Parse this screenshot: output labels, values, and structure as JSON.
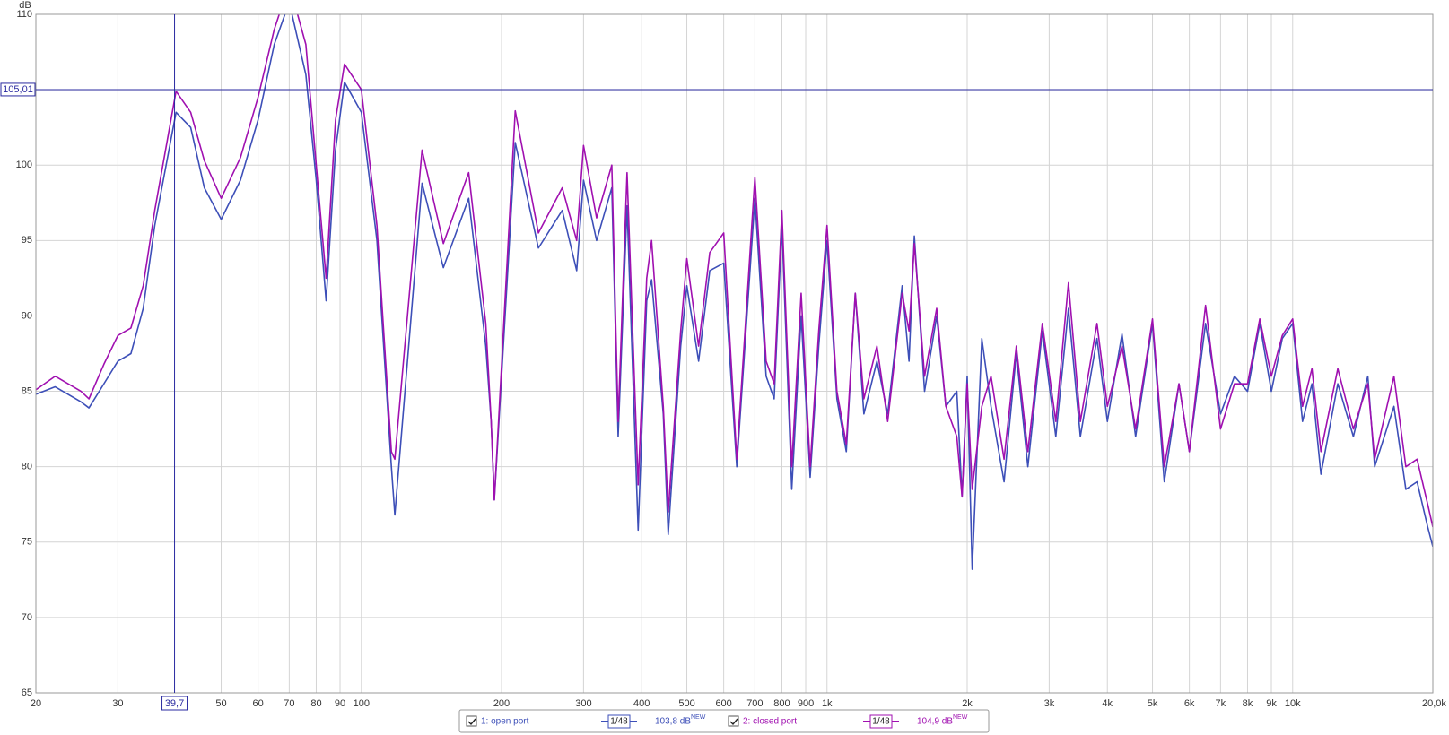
{
  "chart_data": {
    "type": "line",
    "y_axis_label": "dB",
    "log_x": true,
    "grid": true,
    "xlim": [
      20,
      20000
    ],
    "ylim": [
      65,
      110
    ],
    "yticks": [
      65,
      70,
      75,
      80,
      85,
      90,
      95,
      100,
      105,
      110
    ],
    "xticks": [
      20,
      30,
      50,
      60,
      70,
      80,
      90,
      100,
      200,
      300,
      400,
      500,
      600,
      700,
      800,
      900,
      {
        "value": 1000,
        "label": "1k"
      },
      {
        "value": 2000,
        "label": "2k"
      },
      {
        "value": 3000,
        "label": "3k"
      },
      {
        "value": 4000,
        "label": "4k"
      },
      {
        "value": 5000,
        "label": "5k"
      },
      {
        "value": 6000,
        "label": "6k"
      },
      {
        "value": 7000,
        "label": "7k"
      },
      {
        "value": 8000,
        "label": "8k"
      },
      {
        "value": 9000,
        "label": "9k"
      },
      {
        "value": 10000,
        "label": "10k"
      },
      {
        "value": 20000,
        "label": "20,0k Hz"
      }
    ],
    "cursor": {
      "x": 39.7,
      "x_label": "39,7",
      "y": 105.01,
      "y_label": "105,01",
      "color": "#2a2aa0"
    },
    "x": [
      20,
      22,
      25,
      26,
      28,
      30,
      32,
      34,
      36,
      40,
      43,
      46,
      50,
      55,
      60,
      65,
      70,
      76,
      80,
      84,
      88,
      92,
      100,
      108,
      116,
      118,
      135,
      150,
      170,
      185,
      190,
      193,
      214,
      240,
      270,
      290,
      300,
      320,
      345,
      356,
      372,
      393,
      410,
      420,
      445,
      456,
      485,
      500,
      530,
      560,
      600,
      640,
      700,
      740,
      770,
      800,
      840,
      880,
      920,
      960,
      1000,
      1050,
      1100,
      1150,
      1200,
      1280,
      1350,
      1450,
      1500,
      1540,
      1620,
      1720,
      1800,
      1900,
      1950,
      2000,
      2050,
      2150,
      2250,
      2400,
      2550,
      2700,
      2900,
      3100,
      3300,
      3500,
      3800,
      4000,
      4300,
      4600,
      5000,
      5300,
      5700,
      6000,
      6500,
      7000,
      7500,
      8000,
      8500,
      9000,
      9500,
      10000,
      10500,
      11000,
      11500,
      12500,
      13500,
      14500,
      15000,
      16500,
      17500,
      18500,
      19500,
      20000
    ],
    "series": [
      {
        "name": "1: open port",
        "color": "#3d4fb8",
        "smoothing": "1/48",
        "level": "103,8 dB",
        "level_tag": "NEW",
        "values": [
          84.8,
          85.3,
          84.3,
          83.9,
          85.5,
          87.0,
          87.5,
          90.5,
          96,
          103.5,
          102.5,
          98.5,
          96.4,
          99,
          103,
          108,
          110.8,
          106,
          99,
          91,
          101,
          105.5,
          103.5,
          95,
          80,
          76.8,
          98.8,
          93.2,
          97.8,
          88,
          83,
          77.8,
          101.5,
          94.5,
          97,
          93,
          99,
          95,
          98.5,
          82,
          97.3,
          75.8,
          91,
          92.4,
          83.5,
          75.5,
          88,
          92,
          87,
          93,
          93.5,
          80,
          97.8,
          86,
          84.5,
          96,
          78.5,
          90,
          79.3,
          88,
          95,
          84.5,
          81,
          91.5,
          83.5,
          87,
          83.5,
          92,
          87,
          95.3,
          85,
          90,
          84,
          85,
          78,
          86,
          73.2,
          88.5,
          84,
          79,
          87.5,
          80,
          89,
          82,
          90.5,
          82,
          88.5,
          83,
          88.8,
          82,
          89.5,
          79,
          85.5,
          81,
          89.5,
          83.5,
          86,
          85,
          89.5,
          85,
          88.5,
          89.5,
          83,
          85.5,
          79.5,
          85.5,
          82,
          86,
          80,
          84,
          78.5,
          79,
          76,
          74.7
        ]
      },
      {
        "name": "2: closed port",
        "color": "#a010b0",
        "smoothing": "1/48",
        "level": "104,9 dB",
        "level_tag": "NEW",
        "values": [
          85.1,
          86.0,
          85.0,
          84.5,
          86.8,
          88.7,
          89.2,
          92,
          97,
          104.9,
          103.5,
          100.3,
          97.8,
          100.5,
          104.5,
          109,
          112,
          108,
          100,
          92.5,
          103,
          106.7,
          105,
          96,
          81,
          80.5,
          101,
          94.8,
          99.5,
          89.5,
          83,
          77.8,
          103.6,
          95.5,
          98.5,
          95,
          101.3,
          96.5,
          100,
          83,
          99.5,
          78.8,
          92.5,
          95,
          84,
          77,
          89,
          93.8,
          88,
          94.2,
          95.5,
          80.5,
          99.2,
          87,
          85.5,
          97,
          80,
          91.5,
          80,
          89,
          96,
          85,
          81.5,
          91.5,
          84.5,
          88,
          83,
          91.5,
          89,
          94.8,
          86,
          90.5,
          84,
          82,
          78,
          85.5,
          78.5,
          84,
          86,
          80.5,
          88,
          81,
          89.5,
          83,
          92.2,
          83,
          89.5,
          84,
          88,
          82.5,
          89.8,
          80,
          85.5,
          81,
          90.7,
          82.5,
          85.5,
          85.5,
          89.8,
          86,
          88.7,
          89.8,
          84,
          86.5,
          81,
          86.5,
          82.5,
          85.5,
          80.5,
          86,
          80,
          80.5,
          77.5,
          76
        ]
      }
    ]
  }
}
